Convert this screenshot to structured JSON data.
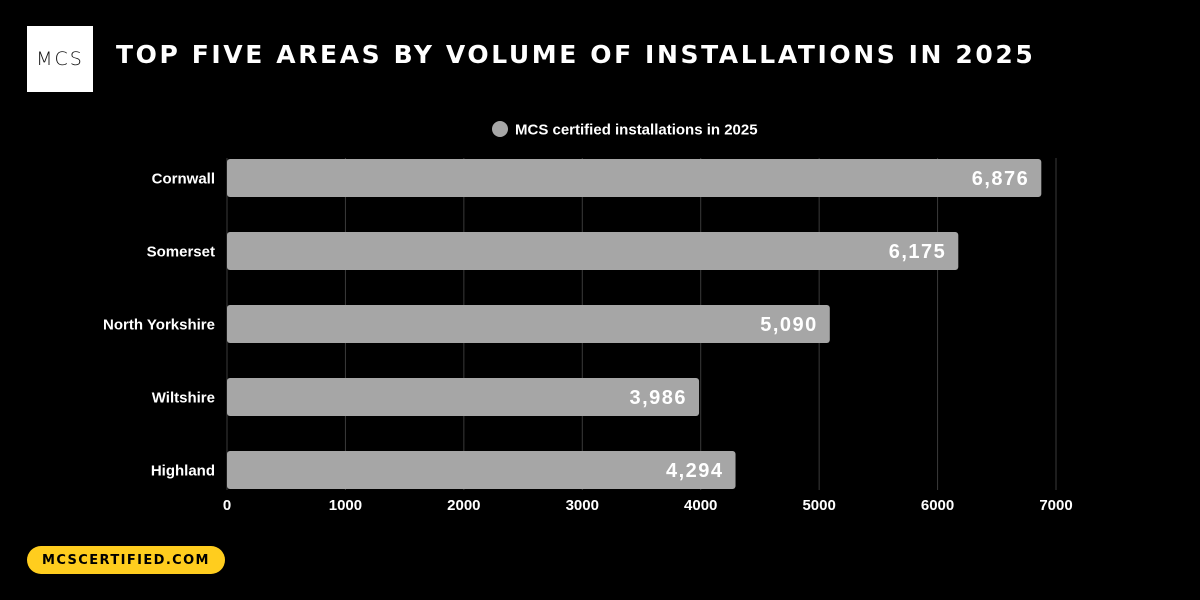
{
  "logo": {
    "text": "MCS"
  },
  "title": "TOP FIVE AREAS BY VOLUME OF INSTALLATIONS IN 2025",
  "footer": {
    "url": "MCSCERTIFIED.COM"
  },
  "colors": {
    "background": "#000000",
    "bar": "#a6a6a6",
    "grid": "#3a3a3a",
    "accent": "#ffcd1e"
  },
  "chart_data": {
    "type": "bar",
    "orientation": "horizontal",
    "categories": [
      "Cornwall",
      "Somerset",
      "North Yorkshire",
      "Wiltshire",
      "Highland"
    ],
    "series": [
      {
        "name": "MCS certified installations in 2025",
        "values": [
          6876,
          6175,
          5090,
          3986,
          4294
        ],
        "labels": [
          "6,876",
          "6,175",
          "5,090",
          "3,986",
          "4,294"
        ]
      }
    ],
    "xlim": [
      0,
      7000
    ],
    "xticks": [
      "0",
      "1000",
      "2000",
      "3000",
      "4000",
      "5000",
      "6000",
      "7000"
    ],
    "title": "TOP FIVE AREAS BY VOLUME OF INSTALLATIONS IN 2025",
    "legend_position": "top-center",
    "grid": true
  }
}
